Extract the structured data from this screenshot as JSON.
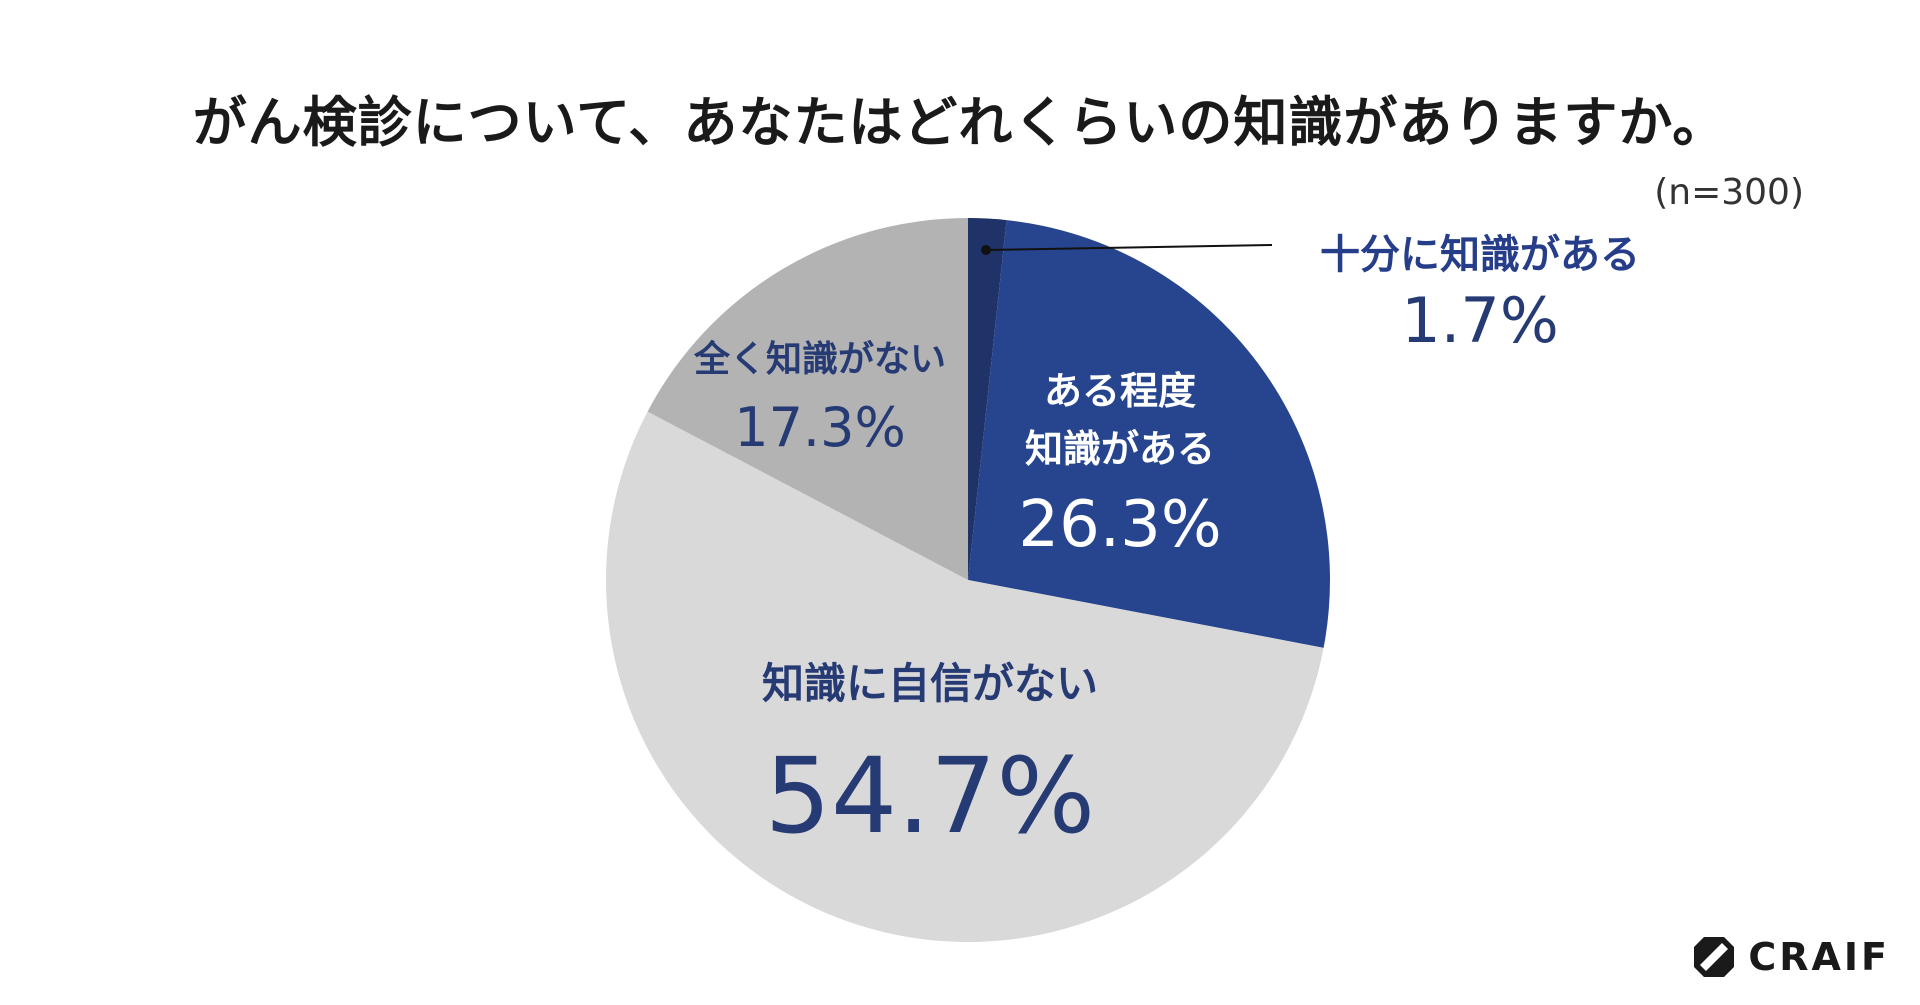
{
  "chart_data": {
    "type": "pie",
    "title": "がん検診について、あなたはどれくらいの知識がありますか。",
    "subtitle": "(n=300)",
    "start_angle_deg": 0,
    "direction": "clockwise",
    "slices": [
      {
        "name": "十分に知識がある",
        "value": 1.7,
        "label": "1.7%",
        "color": "#1f3368"
      },
      {
        "name": "ある程度\n知識がある",
        "name_lines": [
          "ある程度",
          "知識がある"
        ],
        "value": 26.3,
        "label": "26.3%",
        "color": "#27458f"
      },
      {
        "name": "知識に自信がない",
        "value": 54.7,
        "label": "54.7%",
        "color": "#d9d9d9"
      },
      {
        "name": "全く知識がない",
        "value": 17.3,
        "label": "17.3%",
        "color": "#b3b3b3"
      }
    ]
  },
  "brand": {
    "name": "CRAIF"
  }
}
